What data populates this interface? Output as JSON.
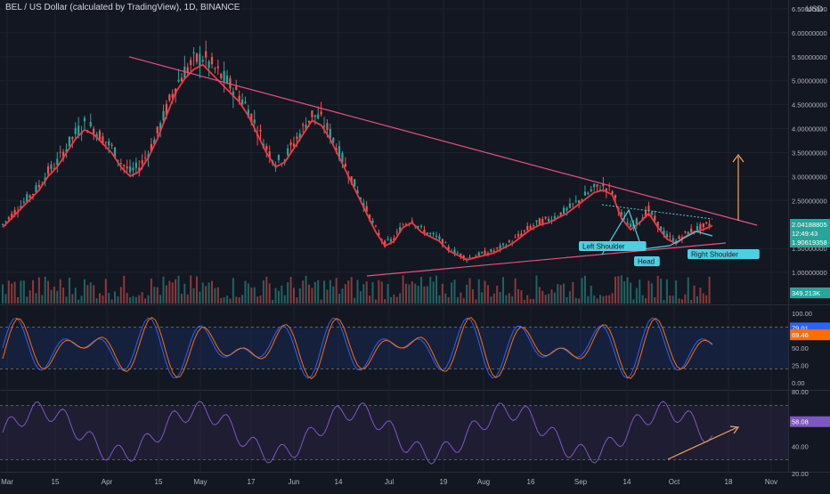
{
  "header": {
    "symbol": "BEL / US Dollar (calculated by TradingView), 1D, BINANCE",
    "currency": "USD"
  },
  "colors": {
    "bg": "#131722",
    "up": "#26a69a",
    "down": "#ef5350",
    "grid": "#1e222d",
    "pane_border": "#2a2e39",
    "trendline": "#e84f7f",
    "ma_up": "#66bb6a",
    "ma_down": "#f23645",
    "neckline": "#4dd0e1",
    "target_arrow": "#f7a35c",
    "stoch_k": "#2962ff",
    "stoch_d": "#ff6d00",
    "stoch_band": "#2962ff",
    "rsi": "#7e57c2",
    "rsi_band": "#7e57c2",
    "rsi_arrow": "#f7a35c"
  },
  "price_axis": {
    "ticks": [
      "6.50000000",
      "6.00000000",
      "5.50000000",
      "5.00000000",
      "4.50000000",
      "4.00000000",
      "3.50000000",
      "3.00000000",
      "2.50000000",
      "1.50000000",
      "1.00000000"
    ],
    "last_price": "2.04188805",
    "countdown": "12:49:43",
    "secondary_price": "1.90619358",
    "volume_label": "349.213K"
  },
  "stoch_axis": {
    "ticks": [
      "100.00",
      "50.00",
      "25.00",
      "0.00"
    ],
    "k_value": "79.01",
    "d_value": "69.46"
  },
  "rsi_axis": {
    "ticks": [
      "80.00",
      "40.00",
      "20.00"
    ],
    "value": "58.08"
  },
  "x_axis": {
    "ticks": [
      "Mar",
      "15",
      "Apr",
      "15",
      "May",
      "17",
      "Jun",
      "14",
      "Jul",
      "19",
      "Aug",
      "16",
      "Sep",
      "14",
      "Oct",
      "18",
      "Nov"
    ]
  },
  "annotations": {
    "left_shoulder": "Left Shoulder",
    "head": "Head",
    "right_shoulder": "Right Shoulder"
  },
  "chart_data": {
    "type": "candlestick",
    "series_close": [
      2.0,
      2.2,
      2.4,
      2.6,
      2.8,
      3.1,
      3.3,
      3.6,
      3.9,
      4.1,
      4.0,
      3.8,
      3.6,
      3.3,
      3.1,
      3.2,
      3.5,
      3.9,
      4.4,
      4.9,
      5.2,
      5.4,
      5.5,
      5.3,
      5.1,
      4.9,
      4.7,
      4.4,
      4.0,
      3.6,
      3.3,
      3.4,
      3.7,
      4.0,
      4.3,
      4.2,
      3.9,
      3.5,
      3.1,
      2.7,
      2.3,
      1.9,
      1.6,
      1.7,
      2.0,
      2.1,
      1.9,
      1.8,
      1.7,
      1.5,
      1.4,
      1.3,
      1.35,
      1.4,
      1.45,
      1.55,
      1.65,
      1.8,
      1.95,
      2.05,
      2.1,
      2.2,
      2.3,
      2.45,
      2.6,
      2.75,
      2.8,
      2.7,
      2.2,
      1.95,
      2.1,
      2.3,
      2.0,
      1.75,
      1.65,
      1.8,
      1.9,
      1.95,
      2.04
    ],
    "price_range": [
      0.7,
      6.5
    ],
    "note_pattern": "head and shoulders",
    "stoch_range": [
      0,
      100
    ],
    "rsi_range": [
      20,
      80
    ]
  }
}
